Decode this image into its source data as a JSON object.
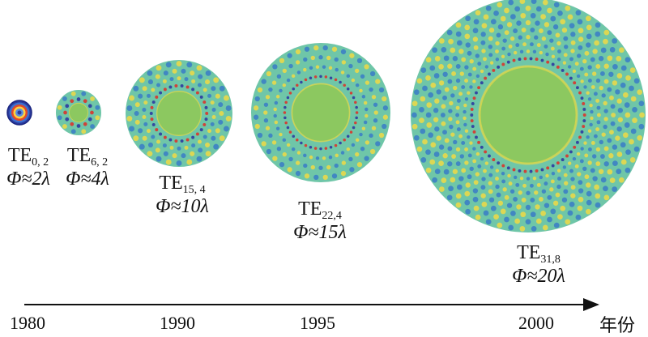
{
  "modes": [
    {
      "mode": "TE",
      "indices": "0, 2",
      "diameter": "Φ≈2λ",
      "diameter_lambda": 2,
      "year": "1980",
      "azimuthal": 0,
      "radial": 2
    },
    {
      "mode": "TE",
      "indices": "6, 2",
      "diameter": "Φ≈4λ",
      "diameter_lambda": 4,
      "year": "",
      "azimuthal": 6,
      "radial": 2
    },
    {
      "mode": "TE",
      "indices": "15, 4",
      "diameter": "Φ≈10λ",
      "diameter_lambda": 10,
      "year": "1990",
      "azimuthal": 15,
      "radial": 4
    },
    {
      "mode": "TE",
      "indices": "22,4",
      "diameter": "Φ≈15λ",
      "diameter_lambda": 15,
      "year": "1995",
      "azimuthal": 22,
      "radial": 4
    },
    {
      "mode": "TE",
      "indices": "31,8",
      "diameter": "Φ≈20λ",
      "diameter_lambda": 20,
      "year": "2000",
      "azimuthal": 31,
      "radial": 8
    }
  ],
  "axis": {
    "ticks": [
      "1980",
      "1990",
      "1995",
      "2000"
    ],
    "unit": "年份"
  },
  "colors": {
    "field_background": "#6fc6a8",
    "field_center": "#8cc860",
    "field_red": "#d9342b",
    "field_blue": "#2c3aa0",
    "field_yellow": "#e8d84a",
    "axis": "#111111"
  }
}
